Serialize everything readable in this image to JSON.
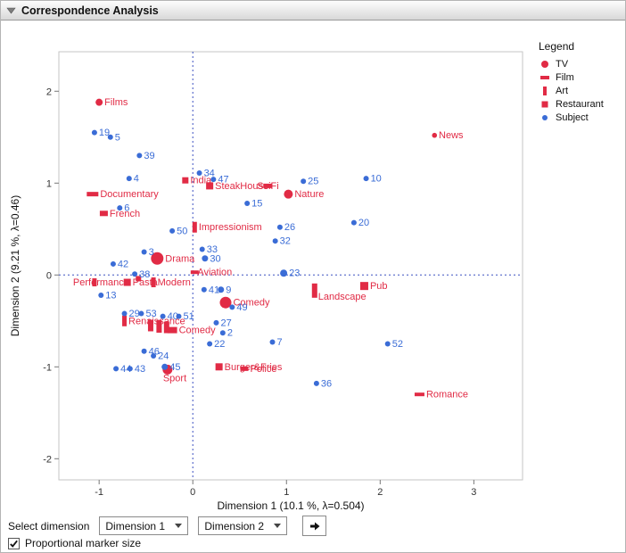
{
  "window": {
    "title": "Correspondence Analysis"
  },
  "icons": {
    "disclosure": "triangle-down",
    "combo": "chevron-down",
    "apply_button": "right-arrow",
    "checkbox": "check"
  },
  "legend": {
    "title": "Legend",
    "items": [
      {
        "label": "TV",
        "marker": "circle"
      },
      {
        "label": "Film",
        "marker": "hbar"
      },
      {
        "label": "Art",
        "marker": "vbar"
      },
      {
        "label": "Restaurant",
        "marker": "square"
      },
      {
        "label": "Subject",
        "marker": "dot"
      }
    ]
  },
  "controls": {
    "select_dimension_label": "Select dimension",
    "dim1_value": "Dimension 1",
    "dim2_value": "Dimension 2",
    "checkbox_label": "Proportional marker size",
    "checkbox_checked": true
  },
  "chart_data": {
    "type": "scatter",
    "xlabel": "Dimension 1  (10.1 %, λ=0.504)",
    "ylabel": "Dimension 2  (9.21 %, λ=0.46)",
    "xlim": [
      -1.43,
      3.52
    ],
    "ylim": [
      -2.23,
      2.43
    ],
    "xticks": [
      -1,
      0,
      1,
      2,
      3
    ],
    "yticks": [
      -2,
      -1,
      0,
      1,
      2
    ],
    "reference_lines": {
      "x": 0,
      "y": 0
    },
    "grid": false,
    "legend_position": "right",
    "colors": {
      "category": "#e12b45",
      "subject": "#3a6cd6",
      "reference": "#3c50c0",
      "frame": "#c6c6c6"
    },
    "series": [
      {
        "name": "TV",
        "marker": "circle",
        "points": [
          {
            "label": "Films",
            "x": -1.0,
            "y": 1.88,
            "r": 4
          },
          {
            "label": "News",
            "x": 2.58,
            "y": 1.52,
            "r": 2.8
          },
          {
            "label": "Nature",
            "x": 1.02,
            "y": 0.88,
            "r": 5
          },
          {
            "label": "Drama",
            "x": -0.38,
            "y": 0.18,
            "r": 7
          },
          {
            "label": "Comedy",
            "x": 0.35,
            "y": -0.3,
            "r": 6.5
          },
          {
            "label": "Sport",
            "x": -0.27,
            "y": -1.03,
            "r": 5.5,
            "ldx": -5,
            "ldy": 13
          }
        ]
      },
      {
        "name": "Film",
        "marker": "hbar",
        "points": [
          {
            "label": "Documentary",
            "x": -1.07,
            "y": 0.88,
            "w": 13,
            "h": 5
          },
          {
            "label": "French",
            "x": -0.95,
            "y": 0.67,
            "w": 9,
            "h": 6
          },
          {
            "label": "SciFi",
            "x": 0.8,
            "y": 0.97,
            "w": 10,
            "h": 5,
            "ldx": -12
          },
          {
            "label": "Aviation",
            "x": 0.02,
            "y": 0.03,
            "w": 9,
            "h": 4,
            "ldx": 3
          },
          {
            "label": "Comedy",
            "x": -0.22,
            "y": -0.6,
            "w": 11,
            "h": 7
          },
          {
            "label": "Police",
            "x": 0.55,
            "y": -1.02,
            "w": 9,
            "h": 5
          },
          {
            "label": "Romance",
            "x": 2.42,
            "y": -1.3,
            "w": 11,
            "h": 4
          }
        ]
      },
      {
        "name": "Art",
        "marker": "vbar",
        "points": [
          {
            "label": "Impressionism",
            "x": 0.02,
            "y": 0.52,
            "w": 5,
            "h": 12
          },
          {
            "label": "Performance",
            "x": -1.05,
            "y": -0.08,
            "w": 5,
            "h": 9,
            "ldx": -24
          },
          {
            "label": "Modern",
            "x": -0.42,
            "y": -0.08,
            "w": 5,
            "h": 11
          },
          {
            "label": "Renaissance",
            "x": -0.73,
            "y": -0.5,
            "w": 5,
            "h": 12
          },
          {
            "label": "",
            "x": -0.45,
            "y": -0.55,
            "w": 6,
            "h": 13
          },
          {
            "label": "",
            "x": -0.36,
            "y": -0.56,
            "w": 6,
            "h": 14
          },
          {
            "label": "",
            "x": -0.28,
            "y": -0.57,
            "w": 6,
            "h": 13
          },
          {
            "label": "Landscape",
            "x": 1.3,
            "y": -0.17,
            "w": 6,
            "h": 16,
            "ldx": 4,
            "ldy": 10
          }
        ]
      },
      {
        "name": "Restaurant",
        "marker": "square",
        "points": [
          {
            "label": "India",
            "x": -0.08,
            "y": 1.03,
            "s": 7
          },
          {
            "label": "SteakHouse",
            "x": 0.18,
            "y": 0.97,
            "s": 8
          },
          {
            "label": "Pub",
            "x": 1.83,
            "y": -0.12,
            "s": 9
          },
          {
            "label": "Pasta",
            "x": -0.7,
            "y": -0.08,
            "s": 8
          },
          {
            "label": "",
            "x": -0.58,
            "y": -0.04,
            "s": 6
          },
          {
            "label": "Burger&Fries",
            "x": 0.28,
            "y": -1.0,
            "s": 8
          }
        ]
      },
      {
        "name": "Subject",
        "marker": "dot",
        "points": [
          {
            "label": "19",
            "x": -1.05,
            "y": 1.55
          },
          {
            "label": "5",
            "x": -0.88,
            "y": 1.5
          },
          {
            "label": "39",
            "x": -0.57,
            "y": 1.3
          },
          {
            "label": "4",
            "x": -0.68,
            "y": 1.05
          },
          {
            "label": "34",
            "x": 0.07,
            "y": 1.11
          },
          {
            "label": "47",
            "x": 0.22,
            "y": 1.04
          },
          {
            "label": "10",
            "x": 1.85,
            "y": 1.05
          },
          {
            "label": "25",
            "x": 1.18,
            "y": 1.02
          },
          {
            "label": "6",
            "x": -0.78,
            "y": 0.73
          },
          {
            "label": "15",
            "x": 0.58,
            "y": 0.78
          },
          {
            "label": "26",
            "x": 0.93,
            "y": 0.52
          },
          {
            "label": "20",
            "x": 1.72,
            "y": 0.57
          },
          {
            "label": "50",
            "x": -0.22,
            "y": 0.48
          },
          {
            "label": "32",
            "x": 0.88,
            "y": 0.37
          },
          {
            "label": "3",
            "x": -0.52,
            "y": 0.25
          },
          {
            "label": "33",
            "x": 0.1,
            "y": 0.28
          },
          {
            "label": "30",
            "x": 0.13,
            "y": 0.18,
            "r": 3.5
          },
          {
            "label": "23",
            "x": 0.97,
            "y": 0.02,
            "r": 4
          },
          {
            "label": "42",
            "x": -0.85,
            "y": 0.12
          },
          {
            "label": "38",
            "x": -0.62,
            "y": 0.01
          },
          {
            "label": "13",
            "x": -0.98,
            "y": -0.22
          },
          {
            "label": "29",
            "x": -0.73,
            "y": -0.42
          },
          {
            "label": "53",
            "x": -0.55,
            "y": -0.42
          },
          {
            "label": "41",
            "x": 0.12,
            "y": -0.16
          },
          {
            "label": "9",
            "x": 0.3,
            "y": -0.16,
            "r": 3.5
          },
          {
            "label": "40",
            "x": -0.32,
            "y": -0.45
          },
          {
            "label": "51",
            "x": -0.15,
            "y": -0.45
          },
          {
            "label": "49",
            "x": 0.42,
            "y": -0.35
          },
          {
            "label": "27",
            "x": 0.25,
            "y": -0.52
          },
          {
            "label": "2",
            "x": 0.32,
            "y": -0.63
          },
          {
            "label": "22",
            "x": 0.18,
            "y": -0.75
          },
          {
            "label": "7",
            "x": 0.85,
            "y": -0.73
          },
          {
            "label": "52",
            "x": 2.08,
            "y": -0.75
          },
          {
            "label": "46",
            "x": -0.52,
            "y": -0.83
          },
          {
            "label": "24",
            "x": -0.42,
            "y": -0.88
          },
          {
            "label": "44",
            "x": -0.82,
            "y": -1.02
          },
          {
            "label": "43",
            "x": -0.67,
            "y": -1.02
          },
          {
            "label": "45",
            "x": -0.3,
            "y": -1.0,
            "r": 3.5
          },
          {
            "label": "36",
            "x": 1.32,
            "y": -1.18
          }
        ]
      }
    ]
  }
}
